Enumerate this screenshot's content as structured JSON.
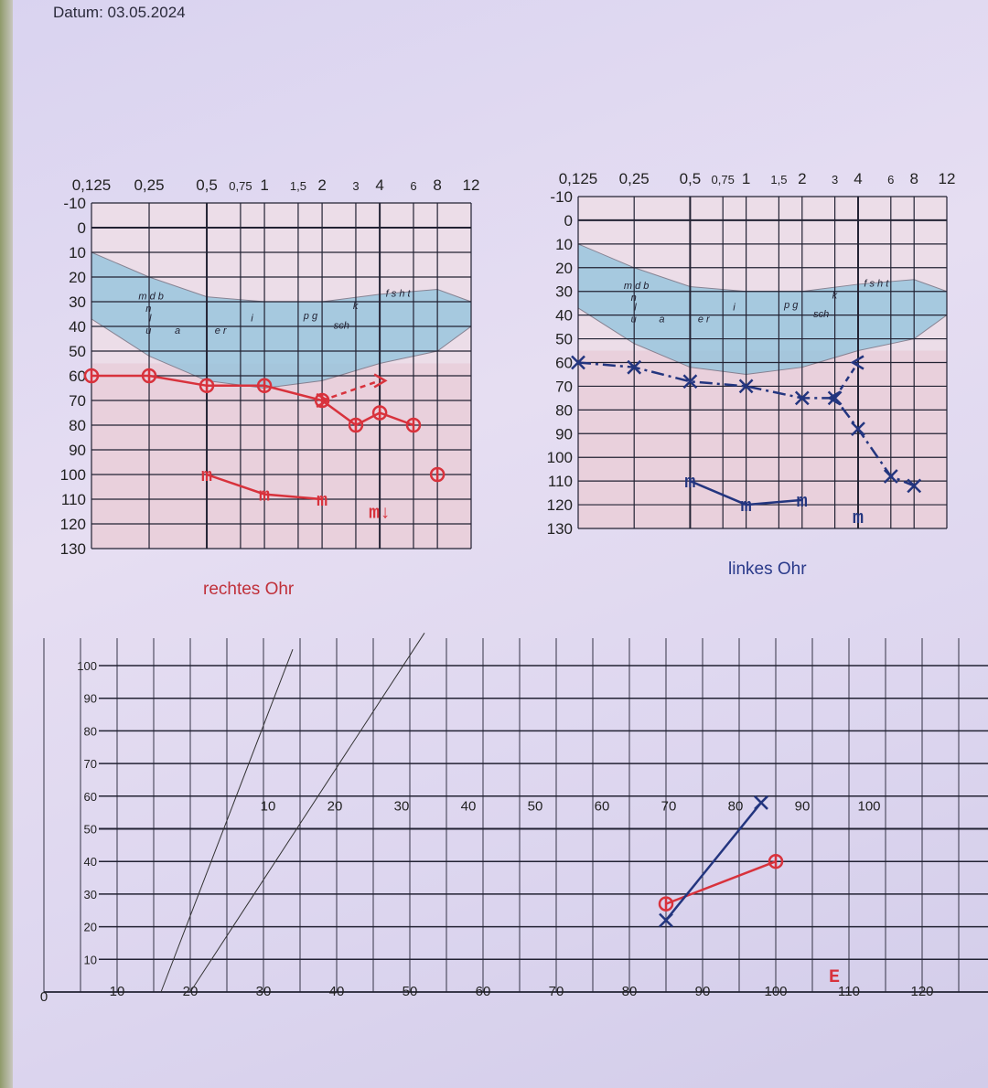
{
  "header": {
    "date": "Datum: 03.05.2024"
  },
  "captions": {
    "right_ear": "rechtes Ohr",
    "left_ear": "linkes Ohr"
  },
  "colors": {
    "right": "#d8323c",
    "left": "#23357f",
    "banana": "#8fc3dc",
    "grid": "#222233"
  },
  "chart_data": [
    {
      "type": "line",
      "id": "audiogram-right",
      "caption": "rechtes Ohr",
      "x_ticks": [
        "0,125",
        "0,25",
        "0,5",
        "0,75",
        "1",
        "1,5",
        "2",
        "3",
        "4",
        "6",
        "8",
        "12"
      ],
      "x_values": [
        0.125,
        0.25,
        0.5,
        0.75,
        1,
        1.5,
        2,
        3,
        4,
        6,
        8,
        12
      ],
      "y_ticks": [
        -10,
        0,
        10,
        20,
        30,
        40,
        50,
        60,
        70,
        80,
        90,
        100,
        110,
        120,
        130
      ],
      "ylim": [
        -10,
        130
      ],
      "x_scale": "log",
      "y_inverted": true,
      "grid": true,
      "series": [
        {
          "symbol": "O",
          "style": "solid",
          "color": "#d8323c",
          "points": [
            [
              0.125,
              60
            ],
            [
              0.25,
              60
            ],
            [
              0.5,
              64
            ],
            [
              1,
              64
            ],
            [
              2,
              70
            ],
            [
              3,
              80
            ],
            [
              4,
              75
            ],
            [
              6,
              80
            ]
          ]
        },
        {
          "symbol": "O",
          "style": "none",
          "color": "#d8323c",
          "points": [
            [
              8,
              100
            ]
          ]
        },
        {
          "symbol": ">",
          "style": "dashed",
          "color": "#d8323c",
          "points": [
            [
              2,
              70
            ],
            [
              4,
              62
            ]
          ]
        },
        {
          "symbol": "m",
          "style": "solid",
          "color": "#d8323c",
          "points": [
            [
              0.5,
              100
            ],
            [
              1,
              108
            ],
            [
              2,
              110
            ]
          ]
        },
        {
          "symbol": "m↓",
          "style": "none",
          "color": "#d8323c",
          "points": [
            [
              4,
              115
            ]
          ]
        }
      ]
    },
    {
      "type": "line",
      "id": "audiogram-left",
      "caption": "linkes Ohr",
      "x_ticks": [
        "0,125",
        "0,25",
        "0,5",
        "0,75",
        "1",
        "1,5",
        "2",
        "3",
        "4",
        "6",
        "8",
        "12"
      ],
      "x_values": [
        0.125,
        0.25,
        0.5,
        0.75,
        1,
        1.5,
        2,
        3,
        4,
        6,
        8,
        12
      ],
      "y_ticks": [
        -10,
        0,
        10,
        20,
        30,
        40,
        50,
        60,
        70,
        80,
        90,
        100,
        110,
        120,
        130
      ],
      "ylim": [
        -10,
        130
      ],
      "x_scale": "log",
      "y_inverted": true,
      "grid": true,
      "series": [
        {
          "symbol": "X",
          "style": "dashdot",
          "color": "#23357f",
          "points": [
            [
              0.125,
              60
            ],
            [
              0.25,
              62
            ],
            [
              0.5,
              68
            ],
            [
              1,
              70
            ],
            [
              2,
              75
            ],
            [
              3,
              75
            ],
            [
              4,
              88
            ],
            [
              6,
              108
            ],
            [
              8,
              112
            ]
          ]
        },
        {
          "symbol": "<",
          "style": "dashed",
          "color": "#23357f",
          "points": [
            [
              3,
              75
            ],
            [
              4,
              60
            ]
          ]
        },
        {
          "symbol": "m",
          "style": "solid",
          "color": "#23357f",
          "points": [
            [
              0.5,
              110
            ],
            [
              1,
              120
            ],
            [
              2,
              118
            ]
          ]
        },
        {
          "symbol": "m",
          "style": "none",
          "color": "#23357f",
          "points": [
            [
              4,
              125
            ]
          ]
        }
      ]
    },
    {
      "type": "line",
      "id": "speech-audiogram",
      "x_ticks": [
        0,
        10,
        20,
        30,
        40,
        50,
        60,
        70,
        80,
        90,
        100,
        110,
        120
      ],
      "x2_ticks": [
        10,
        20,
        30,
        40,
        50,
        60,
        70,
        80,
        90,
        100
      ],
      "y_ticks": [
        10,
        20,
        30,
        40,
        50,
        60,
        70,
        80,
        90,
        100
      ],
      "xlim": [
        0,
        130
      ],
      "ylim": [
        0,
        100
      ],
      "grid": true,
      "series": [
        {
          "symbol": "O",
          "color": "#d8323c",
          "points": [
            [
              85,
              27
            ],
            [
              100,
              40
            ]
          ]
        },
        {
          "symbol": "X",
          "color": "#23357f",
          "points": [
            [
              85,
              22
            ],
            [
              98,
              58
            ]
          ]
        },
        {
          "symbol": "E",
          "color": "#d8323c",
          "points": [
            [
              108,
              5
            ]
          ]
        }
      ]
    }
  ],
  "speech_banana": {
    "upper": [
      [
        0.125,
        10
      ],
      [
        0.25,
        20
      ],
      [
        0.5,
        28
      ],
      [
        1,
        30
      ],
      [
        2,
        30
      ],
      [
        4,
        27
      ],
      [
        8,
        25
      ],
      [
        12,
        30
      ]
    ],
    "lower": [
      [
        12,
        40
      ],
      [
        8,
        50
      ],
      [
        4,
        55
      ],
      [
        2,
        62
      ],
      [
        1,
        65
      ],
      [
        0.5,
        62
      ],
      [
        0.25,
        52
      ],
      [
        0.125,
        37
      ]
    ],
    "phonemes": [
      {
        "t": "m d b",
        "f": 0.22,
        "db": 29
      },
      {
        "t": "n",
        "f": 0.24,
        "db": 34
      },
      {
        "t": "l",
        "f": 0.25,
        "db": 38
      },
      {
        "t": "u",
        "f": 0.24,
        "db": 43
      },
      {
        "t": "a",
        "f": 0.34,
        "db": 43
      },
      {
        "t": "e r",
        "f": 0.55,
        "db": 43
      },
      {
        "t": "i",
        "f": 0.85,
        "db": 38
      },
      {
        "t": "p g",
        "f": 1.6,
        "db": 37
      },
      {
        "t": "k",
        "f": 2.9,
        "db": 33
      },
      {
        "t": "sch",
        "f": 2.3,
        "db": 41
      },
      {
        "t": "f s h t",
        "f": 4.3,
        "db": 28
      }
    ]
  }
}
